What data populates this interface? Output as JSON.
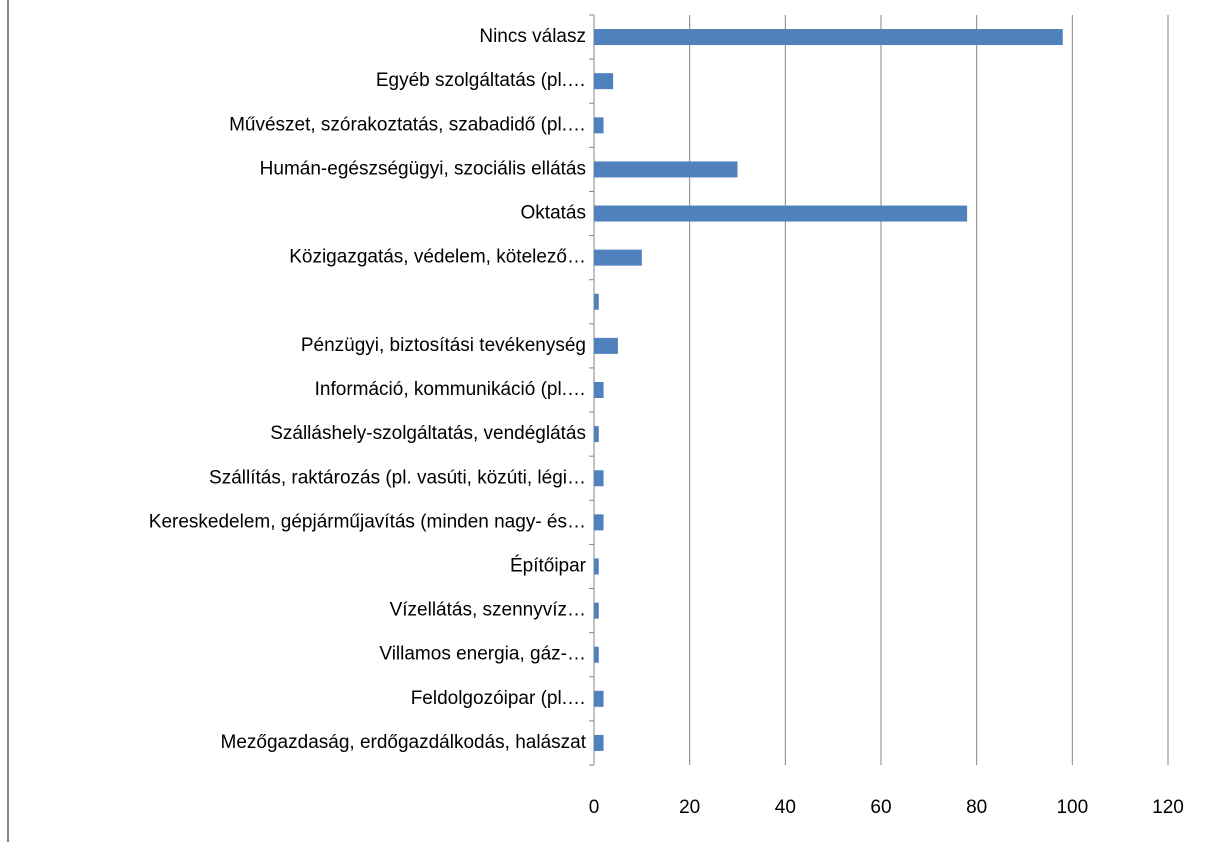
{
  "chart_data": {
    "type": "bar",
    "orientation": "horizontal",
    "categories": [
      "Nincs válasz",
      "Egyéb szolgáltatás (pl.…",
      "Művészet, szórakoztatás, szabadidő (pl.…",
      "Humán-egészségügyi, szociális ellátás",
      "Oktatás",
      "Közigazgatás, védelem, kötelező…",
      null,
      "Pénzügyi, biztosítási tevékenység",
      "Információ, kommunikáció (pl.…",
      "Szálláshely-szolgáltatás, vendéglátás",
      "Szállítás, raktározás (pl. vasúti, közúti, légi…",
      "Kereskedelem, gépjárműjavítás (minden nagy- és…",
      "Építőipar",
      "Vízellátás, szennyvíz…",
      "Villamos energia, gáz-…",
      "Feldolgozóipar (pl.…",
      "Mezőgazdaság, erdőgazdálkodás, halászat"
    ],
    "values": [
      98,
      4,
      2,
      30,
      78,
      10,
      1,
      5,
      2,
      1,
      2,
      2,
      1,
      1,
      1,
      2,
      2
    ],
    "color": "#4f81bd",
    "xlim": [
      0,
      120
    ],
    "xticks": [
      0,
      20,
      40,
      60,
      80,
      100,
      120
    ],
    "grid": true
  }
}
